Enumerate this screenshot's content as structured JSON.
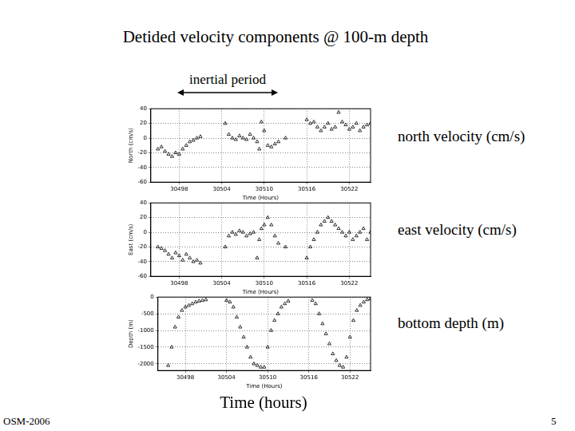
{
  "page": {
    "title": "Detided velocity components @ 100-m depth",
    "annotation": "inertial period",
    "side_labels": [
      "north velocity (cm/s)",
      "east velocity (cm/s)",
      "bottom depth (m)"
    ],
    "x_caption": "Time (hours)",
    "footer": "OSM-2006",
    "page_number": "5"
  },
  "chart_data": [
    {
      "type": "scatter",
      "y_label": "North (cm/s)",
      "x_label": "Time (Hours)",
      "color": "#000000",
      "marker": "triangle",
      "grid": true,
      "xlim": [
        30494,
        30525
      ],
      "xticks": [
        30498,
        30504,
        30510,
        30516,
        30522
      ],
      "ylim": [
        -60,
        40
      ],
      "yticks": [
        -60,
        -40,
        -20,
        0,
        20,
        40
      ],
      "x": [
        30495.0,
        30495.5,
        30496.0,
        30496.5,
        30497.0,
        30497.5,
        30498.0,
        30498.5,
        30499.0,
        30499.5,
        30500.0,
        30500.5,
        30501.0,
        30504.5,
        30505.0,
        30505.5,
        30506.0,
        30506.5,
        30507.0,
        30507.5,
        30508.0,
        30508.5,
        30509.0,
        30509.3,
        30509.6,
        30510.0,
        30510.5,
        30511.0,
        30511.5,
        30512.0,
        30513.0,
        30516.0,
        30516.5,
        30517.0,
        30517.5,
        30518.0,
        30518.5,
        30519.0,
        30519.5,
        30520.0,
        30520.5,
        30521.0,
        30521.5,
        30522.0,
        30522.5,
        30523.0,
        30523.5,
        30524.0,
        30524.5,
        30525.0
      ],
      "values": [
        -15,
        -12,
        -18,
        -22,
        -25,
        -20,
        -22,
        -15,
        -10,
        -5,
        -3,
        0,
        2,
        20,
        5,
        0,
        -2,
        3,
        0,
        -2,
        5,
        0,
        -5,
        -15,
        22,
        10,
        -10,
        -12,
        -8,
        -5,
        0,
        25,
        20,
        22,
        15,
        10,
        15,
        20,
        12,
        15,
        35,
        22,
        18,
        12,
        15,
        20,
        10,
        15,
        18,
        20
      ]
    },
    {
      "type": "scatter",
      "y_label": "East (cm/s)",
      "x_label": "Time (Hours)",
      "color": "#000000",
      "marker": "triangle",
      "grid": true,
      "xlim": [
        30494,
        30525
      ],
      "xticks": [
        30498,
        30504,
        30510,
        30516,
        30522
      ],
      "ylim": [
        -60,
        40
      ],
      "yticks": [
        -60,
        -40,
        -20,
        0,
        20,
        40
      ],
      "x": [
        30495.0,
        30495.5,
        30496.0,
        30496.5,
        30497.0,
        30497.5,
        30498.0,
        30498.5,
        30499.0,
        30499.5,
        30500.0,
        30500.5,
        30501.0,
        30504.5,
        30505.0,
        30505.5,
        30506.0,
        30506.5,
        30507.0,
        30507.5,
        30508.0,
        30508.5,
        30509.0,
        30509.3,
        30509.6,
        30510.0,
        30510.5,
        30511.0,
        30511.5,
        30512.0,
        30513.0,
        30516.0,
        30516.5,
        30517.0,
        30517.5,
        30518.0,
        30518.5,
        30519.0,
        30519.5,
        30520.0,
        30520.5,
        30521.0,
        30521.5,
        30522.0,
        30522.5,
        30523.0,
        30523.5,
        30524.0,
        30524.5,
        30525.0
      ],
      "values": [
        -20,
        -22,
        -25,
        -30,
        -35,
        -28,
        -32,
        -38,
        -30,
        -35,
        -40,
        -38,
        -42,
        -20,
        -5,
        0,
        -3,
        2,
        0,
        -5,
        -2,
        0,
        -35,
        -10,
        5,
        10,
        20,
        10,
        -5,
        -15,
        -20,
        -35,
        -20,
        -10,
        0,
        10,
        15,
        20,
        15,
        10,
        5,
        0,
        -5,
        0,
        -10,
        -5,
        0,
        5,
        -10,
        0
      ]
    },
    {
      "type": "scatter",
      "y_label": "Depth (m)",
      "x_label": "Time (Hours)",
      "color": "#000000",
      "marker": "triangle",
      "grid": true,
      "xlim": [
        30494,
        30525
      ],
      "xticks": [
        30498,
        30504,
        30510,
        30516,
        30522
      ],
      "ylim": [
        -2200,
        0
      ],
      "yticks": [
        -2000,
        -1500,
        -1000,
        -500,
        0
      ],
      "x": [
        30495.5,
        30496.0,
        30496.5,
        30497.0,
        30497.5,
        30498.0,
        30498.5,
        30499.0,
        30499.5,
        30500.0,
        30500.5,
        30501.0,
        30504.0,
        30504.5,
        30505.0,
        30505.5,
        30506.0,
        30506.5,
        30507.0,
        30507.5,
        30508.0,
        30508.5,
        30509.0,
        30509.5,
        30510.0,
        30510.5,
        30511.0,
        30511.5,
        30512.0,
        30512.5,
        30513.0,
        30516.5,
        30517.0,
        30517.5,
        30518.0,
        30518.5,
        30519.0,
        30519.5,
        30520.0,
        30520.5,
        30521.0,
        30521.5,
        30522.0,
        30522.5,
        30523.0,
        30523.5,
        30524.0,
        30524.5,
        30525.0
      ],
      "values": [
        -2050,
        -1500,
        -900,
        -600,
        -400,
        -300,
        -250,
        -200,
        -150,
        -120,
        -100,
        -80,
        -100,
        -150,
        -300,
        -600,
        -900,
        -1200,
        -1500,
        -1800,
        -2000,
        -2050,
        -2100,
        -2100,
        -1500,
        -1000,
        -700,
        -500,
        -300,
        -200,
        -120,
        -100,
        -200,
        -500,
        -800,
        -1100,
        -1400,
        -1700,
        -1900,
        -2050,
        -2100,
        -1800,
        -1200,
        -700,
        -400,
        -250,
        -150,
        -80,
        -50
      ]
    }
  ]
}
